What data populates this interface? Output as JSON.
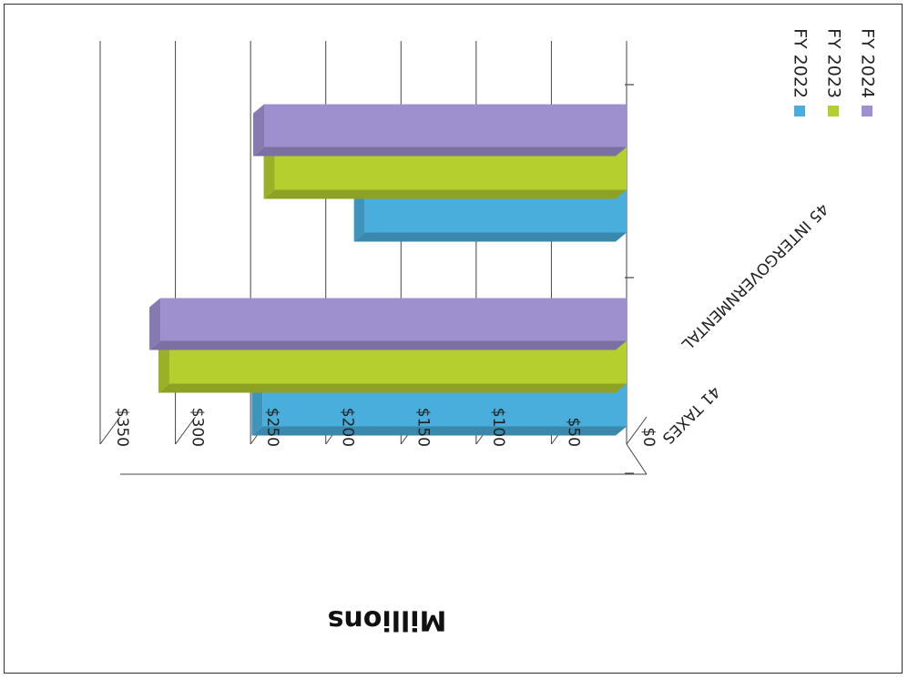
{
  "chart_data": {
    "type": "bar",
    "orientation": "horizontal-3d",
    "categories": [
      "41 TAXES",
      "45 INTERGOVERNMENTAL"
    ],
    "series": [
      {
        "name": "FY 2022",
        "color": "#4aaedc",
        "values": [
          242,
          174
        ]
      },
      {
        "name": "FY 2023",
        "color": "#b5cf2e",
        "values": [
          304,
          234
        ]
      },
      {
        "name": "FY 2024",
        "color": "#9e90cf",
        "values": [
          310,
          241
        ]
      }
    ],
    "ylabel": "Millions",
    "ylim": [
      0,
      350
    ],
    "ticks": [
      "$0",
      "$50",
      "$100",
      "$150",
      "$200",
      "$250",
      "$300",
      "$350"
    ],
    "grid": true,
    "legend_position": "right",
    "rotation": "180deg"
  }
}
